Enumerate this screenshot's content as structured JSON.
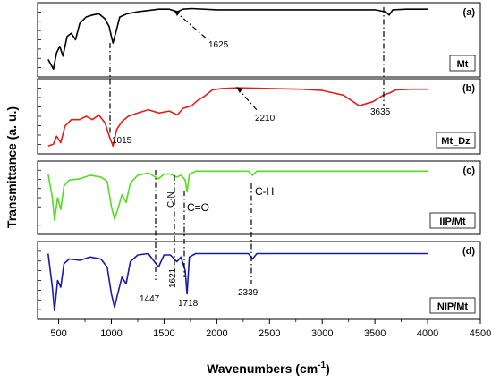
{
  "chart_data": {
    "type": "line",
    "title": "",
    "xlabel": "Wavenumbers (cm",
    "xlabel_sup": "-1",
    "xlabel_tail": ")",
    "ylabel": "Transmittance (a. u.)",
    "xlim": [
      300,
      4500
    ],
    "xticks": [
      500,
      1000,
      1500,
      2000,
      2500,
      3000,
      3500,
      4000,
      4500
    ],
    "panels": [
      {
        "id": "(a)",
        "sample": "Mt",
        "color": "#000000",
        "points": [
          [
            400,
            0.2
          ],
          [
            450,
            0.05
          ],
          [
            480,
            0.3
          ],
          [
            510,
            0.4
          ],
          [
            540,
            0.25
          ],
          [
            580,
            0.55
          ],
          [
            620,
            0.6
          ],
          [
            660,
            0.5
          ],
          [
            700,
            0.75
          ],
          [
            760,
            0.85
          ],
          [
            820,
            0.88
          ],
          [
            880,
            0.9
          ],
          [
            940,
            0.82
          ],
          [
            980,
            0.7
          ],
          [
            1000,
            0.55
          ],
          [
            1015,
            0.45
          ],
          [
            1040,
            0.6
          ],
          [
            1080,
            0.85
          ],
          [
            1150,
            0.9
          ],
          [
            1250,
            0.93
          ],
          [
            1350,
            0.95
          ],
          [
            1450,
            0.97
          ],
          [
            1550,
            0.97
          ],
          [
            1625,
            0.93
          ],
          [
            1680,
            0.97
          ],
          [
            1760,
            0.98
          ],
          [
            2000,
            0.96
          ],
          [
            2500,
            0.96
          ],
          [
            3000,
            0.96
          ],
          [
            3500,
            0.96
          ],
          [
            3600,
            0.93
          ],
          [
            3635,
            0.88
          ],
          [
            3670,
            0.96
          ],
          [
            3800,
            0.97
          ],
          [
            4000,
            0.97
          ]
        ]
      },
      {
        "id": "(b)",
        "sample": "Mt_Dz",
        "color": "#e0201b",
        "points": [
          [
            400,
            0.05
          ],
          [
            450,
            0.08
          ],
          [
            480,
            0.2
          ],
          [
            520,
            0.1
          ],
          [
            560,
            0.35
          ],
          [
            620,
            0.45
          ],
          [
            700,
            0.45
          ],
          [
            760,
            0.5
          ],
          [
            820,
            0.45
          ],
          [
            880,
            0.52
          ],
          [
            940,
            0.4
          ],
          [
            980,
            0.2
          ],
          [
            1015,
            0.05
          ],
          [
            1050,
            0.3
          ],
          [
            1100,
            0.42
          ],
          [
            1160,
            0.5
          ],
          [
            1250,
            0.55
          ],
          [
            1350,
            0.6
          ],
          [
            1450,
            0.55
          ],
          [
            1550,
            0.58
          ],
          [
            1625,
            0.52
          ],
          [
            1680,
            0.62
          ],
          [
            1760,
            0.66
          ],
          [
            1820,
            0.74
          ],
          [
            1880,
            0.8
          ],
          [
            1960,
            0.9
          ],
          [
            2050,
            0.92
          ],
          [
            2210,
            0.93
          ],
          [
            2500,
            0.92
          ],
          [
            2800,
            0.91
          ],
          [
            3000,
            0.89
          ],
          [
            3200,
            0.82
          ],
          [
            3350,
            0.66
          ],
          [
            3480,
            0.72
          ],
          [
            3580,
            0.82
          ],
          [
            3635,
            0.85
          ],
          [
            3700,
            0.9
          ],
          [
            3850,
            0.91
          ],
          [
            4000,
            0.91
          ]
        ]
      },
      {
        "id": "(c)",
        "sample": "IIP/Mt",
        "color": "#55dd22",
        "points": [
          [
            400,
            0.9
          ],
          [
            440,
            0.5
          ],
          [
            460,
            0.12
          ],
          [
            490,
            0.5
          ],
          [
            520,
            0.3
          ],
          [
            550,
            0.7
          ],
          [
            600,
            0.8
          ],
          [
            700,
            0.82
          ],
          [
            800,
            0.88
          ],
          [
            900,
            0.85
          ],
          [
            960,
            0.78
          ],
          [
            1000,
            0.35
          ],
          [
            1030,
            0.14
          ],
          [
            1060,
            0.3
          ],
          [
            1100,
            0.55
          ],
          [
            1140,
            0.42
          ],
          [
            1180,
            0.75
          ],
          [
            1250,
            0.88
          ],
          [
            1350,
            0.92
          ],
          [
            1447,
            0.82
          ],
          [
            1500,
            0.9
          ],
          [
            1560,
            0.9
          ],
          [
            1621,
            0.85
          ],
          [
            1660,
            0.88
          ],
          [
            1700,
            0.8
          ],
          [
            1718,
            0.6
          ],
          [
            1740,
            0.9
          ],
          [
            1800,
            0.95
          ],
          [
            2000,
            0.95
          ],
          [
            2300,
            0.95
          ],
          [
            2339,
            0.88
          ],
          [
            2380,
            0.95
          ],
          [
            2600,
            0.95
          ],
          [
            3000,
            0.95
          ],
          [
            3500,
            0.95
          ],
          [
            4000,
            0.95
          ]
        ]
      },
      {
        "id": "(d)",
        "sample": "NIP/Mt",
        "color": "#1a1aaa",
        "points": [
          [
            400,
            0.9
          ],
          [
            440,
            0.4
          ],
          [
            460,
            0.05
          ],
          [
            490,
            0.5
          ],
          [
            520,
            0.4
          ],
          [
            550,
            0.75
          ],
          [
            600,
            0.82
          ],
          [
            700,
            0.8
          ],
          [
            800,
            0.85
          ],
          [
            900,
            0.82
          ],
          [
            960,
            0.7
          ],
          [
            1000,
            0.3
          ],
          [
            1030,
            0.1
          ],
          [
            1060,
            0.3
          ],
          [
            1100,
            0.55
          ],
          [
            1140,
            0.45
          ],
          [
            1180,
            0.78
          ],
          [
            1250,
            0.88
          ],
          [
            1350,
            0.9
          ],
          [
            1447,
            0.7
          ],
          [
            1500,
            0.88
          ],
          [
            1560,
            0.88
          ],
          [
            1621,
            0.78
          ],
          [
            1660,
            0.85
          ],
          [
            1700,
            0.65
          ],
          [
            1718,
            0.3
          ],
          [
            1740,
            0.85
          ],
          [
            1800,
            0.9
          ],
          [
            2000,
            0.9
          ],
          [
            2300,
            0.9
          ],
          [
            2339,
            0.82
          ],
          [
            2380,
            0.9
          ],
          [
            2600,
            0.9
          ],
          [
            3000,
            0.9
          ],
          [
            3500,
            0.9
          ],
          [
            4000,
            0.9
          ]
        ]
      }
    ],
    "annotations": {
      "a_1625": "1625",
      "b_1015": "1015",
      "b_2210": "2210",
      "b_3635": "3635",
      "c_cn": "C-N",
      "c_co": "C=O",
      "c_ch": "C-H",
      "d_1447": "1447",
      "d_1621": "1621",
      "d_1718": "1718",
      "d_2339": "2339"
    }
  }
}
